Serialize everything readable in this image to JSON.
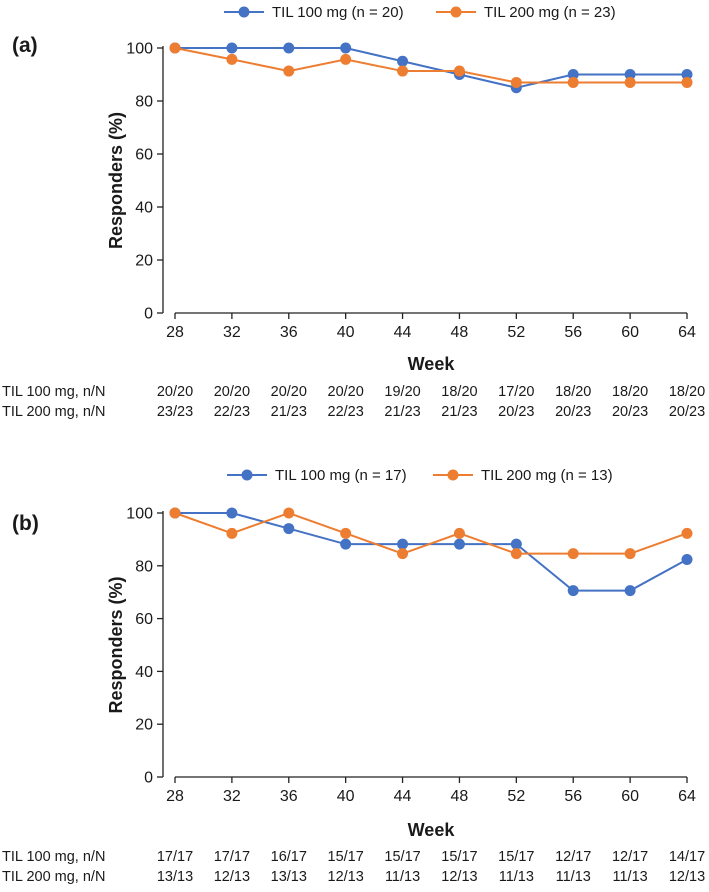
{
  "chart_data": [
    {
      "type": "line",
      "panel_label": "(a)",
      "x": [
        28,
        32,
        36,
        40,
        44,
        48,
        52,
        56,
        60,
        64
      ],
      "xlabel": "Week",
      "ylabel": "Responders (%)",
      "ylim": [
        0,
        100
      ],
      "yticks": [
        0,
        20,
        40,
        60,
        80,
        100
      ],
      "series": [
        {
          "name": "TIL 100 mg (n = 20)",
          "color": "#4472c4",
          "values": [
            100,
            100,
            100,
            100,
            95,
            90,
            85,
            90,
            90,
            90
          ]
        },
        {
          "name": "TIL 200 mg (n = 23)",
          "color": "#ed7d31",
          "values": [
            100,
            95.7,
            91.3,
            95.7,
            91.3,
            91.3,
            87,
            87,
            87,
            87
          ]
        }
      ],
      "risk_table": [
        {
          "label": "TIL 100 mg, n/N",
          "values": [
            "20/20",
            "20/20",
            "20/20",
            "20/20",
            "19/20",
            "18/20",
            "17/20",
            "18/20",
            "18/20",
            "18/20"
          ]
        },
        {
          "label": "TIL 200 mg, n/N",
          "values": [
            "23/23",
            "22/23",
            "21/23",
            "22/23",
            "21/23",
            "21/23",
            "20/23",
            "20/23",
            "20/23",
            "20/23"
          ]
        }
      ]
    },
    {
      "type": "line",
      "panel_label": "(b)",
      "x": [
        28,
        32,
        36,
        40,
        44,
        48,
        52,
        56,
        60,
        64
      ],
      "xlabel": "Week",
      "ylabel": "Responders (%)",
      "ylim": [
        0,
        100
      ],
      "yticks": [
        0,
        20,
        40,
        60,
        80,
        100
      ],
      "series": [
        {
          "name": "TIL 100 mg (n = 17)",
          "color": "#4472c4",
          "values": [
            100,
            100,
            94.1,
            88.2,
            88.2,
            88.2,
            88.2,
            70.6,
            70.6,
            82.4
          ]
        },
        {
          "name": "TIL 200 mg (n = 13)",
          "color": "#ed7d31",
          "values": [
            100,
            92.3,
            100,
            92.3,
            84.6,
            92.3,
            84.6,
            84.6,
            84.6,
            92.3
          ]
        }
      ],
      "risk_table": [
        {
          "label": "TIL 100 mg, n/N",
          "values": [
            "17/17",
            "17/17",
            "16/17",
            "15/17",
            "15/17",
            "15/17",
            "15/17",
            "12/17",
            "12/17",
            "14/17"
          ]
        },
        {
          "label": "TIL 200 mg, n/N",
          "values": [
            "13/13",
            "12/13",
            "13/13",
            "12/13",
            "11/13",
            "12/13",
            "11/13",
            "11/13",
            "11/13",
            "12/13"
          ]
        }
      ]
    }
  ]
}
